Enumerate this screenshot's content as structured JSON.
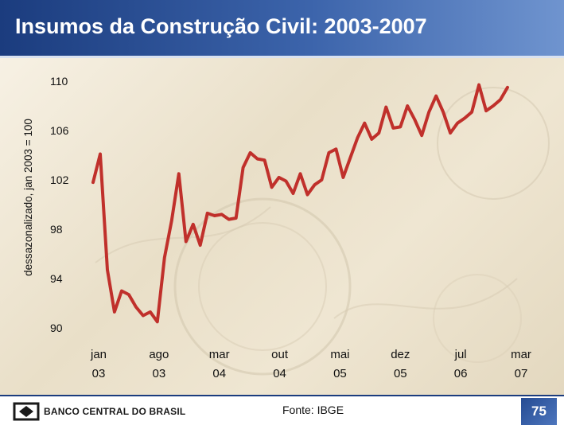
{
  "slide": {
    "title": "Insumos da Construção Civil: 2003-2007",
    "source": "Fonte: IBGE",
    "logo_text": "BANCO CENTRAL DO BRASIL",
    "page_number": "75"
  },
  "colors": {
    "header": "#2a4f95",
    "line": "#c0302b",
    "text": "#111111"
  },
  "chart_data": {
    "type": "line",
    "title": "",
    "ylabel": "dessazonalizado, jan 2003 = 100",
    "xlabel": "",
    "ylim": [
      90,
      110
    ],
    "yticks": [
      "110",
      "106",
      "102",
      "98",
      "94",
      "90"
    ],
    "xtick_labels": [
      {
        "line1": "jan",
        "line2": "03"
      },
      {
        "line1": "ago",
        "line2": "03"
      },
      {
        "line1": "mar",
        "line2": "04"
      },
      {
        "line1": "out",
        "line2": "04"
      },
      {
        "line1": "mai",
        "line2": "05"
      },
      {
        "line1": "dez",
        "line2": "05"
      },
      {
        "line1": "jul",
        "line2": "06"
      },
      {
        "line1": "mar",
        "line2": "07"
      }
    ],
    "grid": false,
    "series": [
      {
        "values": [
          101.8,
          104.1,
          94.7,
          91.3,
          93.0,
          92.7,
          91.7,
          91.0,
          91.3,
          90.5,
          95.7,
          98.7,
          102.5,
          97.0,
          98.4,
          96.7,
          99.3,
          99.1,
          99.2,
          98.8,
          98.9,
          103.0,
          104.2,
          103.7,
          103.6,
          101.4,
          102.2,
          101.9,
          100.9,
          102.5,
          100.8,
          101.6,
          102.0,
          104.2,
          104.5,
          102.2,
          103.8,
          105.4,
          106.6,
          105.3,
          105.8,
          107.9,
          106.2,
          106.3,
          108.0,
          106.9,
          105.6,
          107.5,
          108.8,
          107.5,
          105.8,
          106.6,
          107.0,
          107.5,
          109.7,
          107.6,
          108.0,
          108.5,
          109.5
        ]
      }
    ]
  }
}
